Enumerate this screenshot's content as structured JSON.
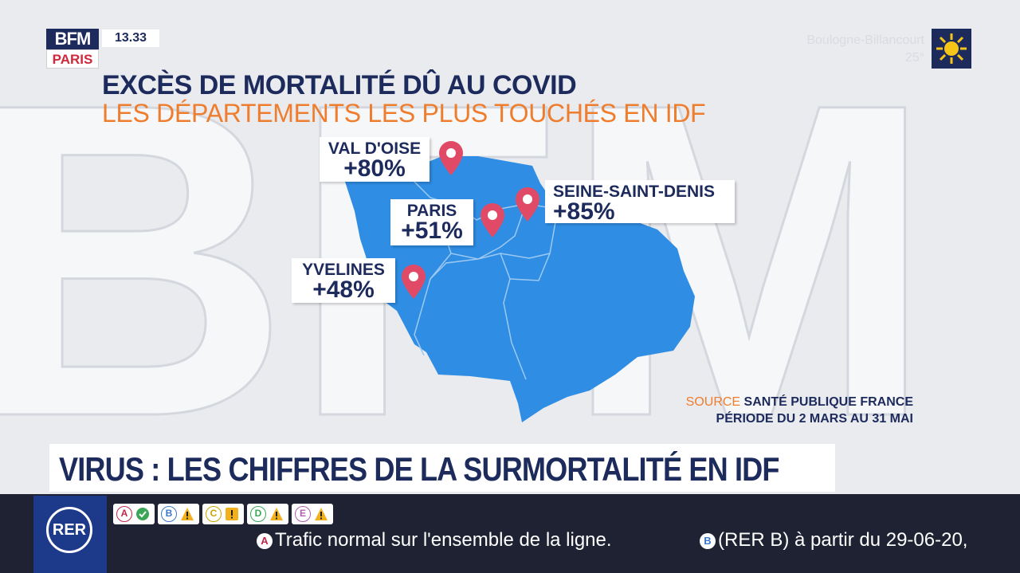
{
  "channel": {
    "logo_top": "BFM",
    "logo_bottom": "PARIS",
    "time": "13.33"
  },
  "weather": {
    "city": "Boulogne-Billancourt",
    "temp": "25°",
    "icon": "sun-icon"
  },
  "title": "EXCÈS DE MORTALITÉ DÛ AU COVID",
  "subtitle": "LES DÉPARTEMENTS LES PLUS TOUCHÉS EN IDF",
  "regions": [
    {
      "name": "VAL D'OISE",
      "value": "+80%"
    },
    {
      "name": "SEINE-SAINT-DENIS",
      "value": "+85%"
    },
    {
      "name": "PARIS",
      "value": "+51%"
    },
    {
      "name": "YVELINES",
      "value": "+48%"
    }
  ],
  "source": {
    "key": "SOURCE",
    "value": "SANTÉ PUBLIQUE FRANCE",
    "period": "PÉRIODE DU 2 MARS AU 31 MAI"
  },
  "headline": "VIRUS : LES CHIFFRES DE LA SURMORTALITÉ EN IDF",
  "ticker": {
    "network": "RER",
    "lines": [
      {
        "letter": "A",
        "status": "ok"
      },
      {
        "letter": "B",
        "status": "warning"
      },
      {
        "letter": "C",
        "status": "alert"
      },
      {
        "letter": "D",
        "status": "warning"
      },
      {
        "letter": "E",
        "status": "warning"
      }
    ],
    "messages": [
      {
        "line": "A",
        "text": "Trafic normal sur l'ensemble de la ligne."
      },
      {
        "line": "B",
        "text": "(RER B) à partir du 29-06-20,"
      }
    ]
  },
  "colors": {
    "navy": "#1d2a5c",
    "orange": "#ee7d2e",
    "map_blue": "#2f8de4",
    "pin": "#e04a67"
  }
}
